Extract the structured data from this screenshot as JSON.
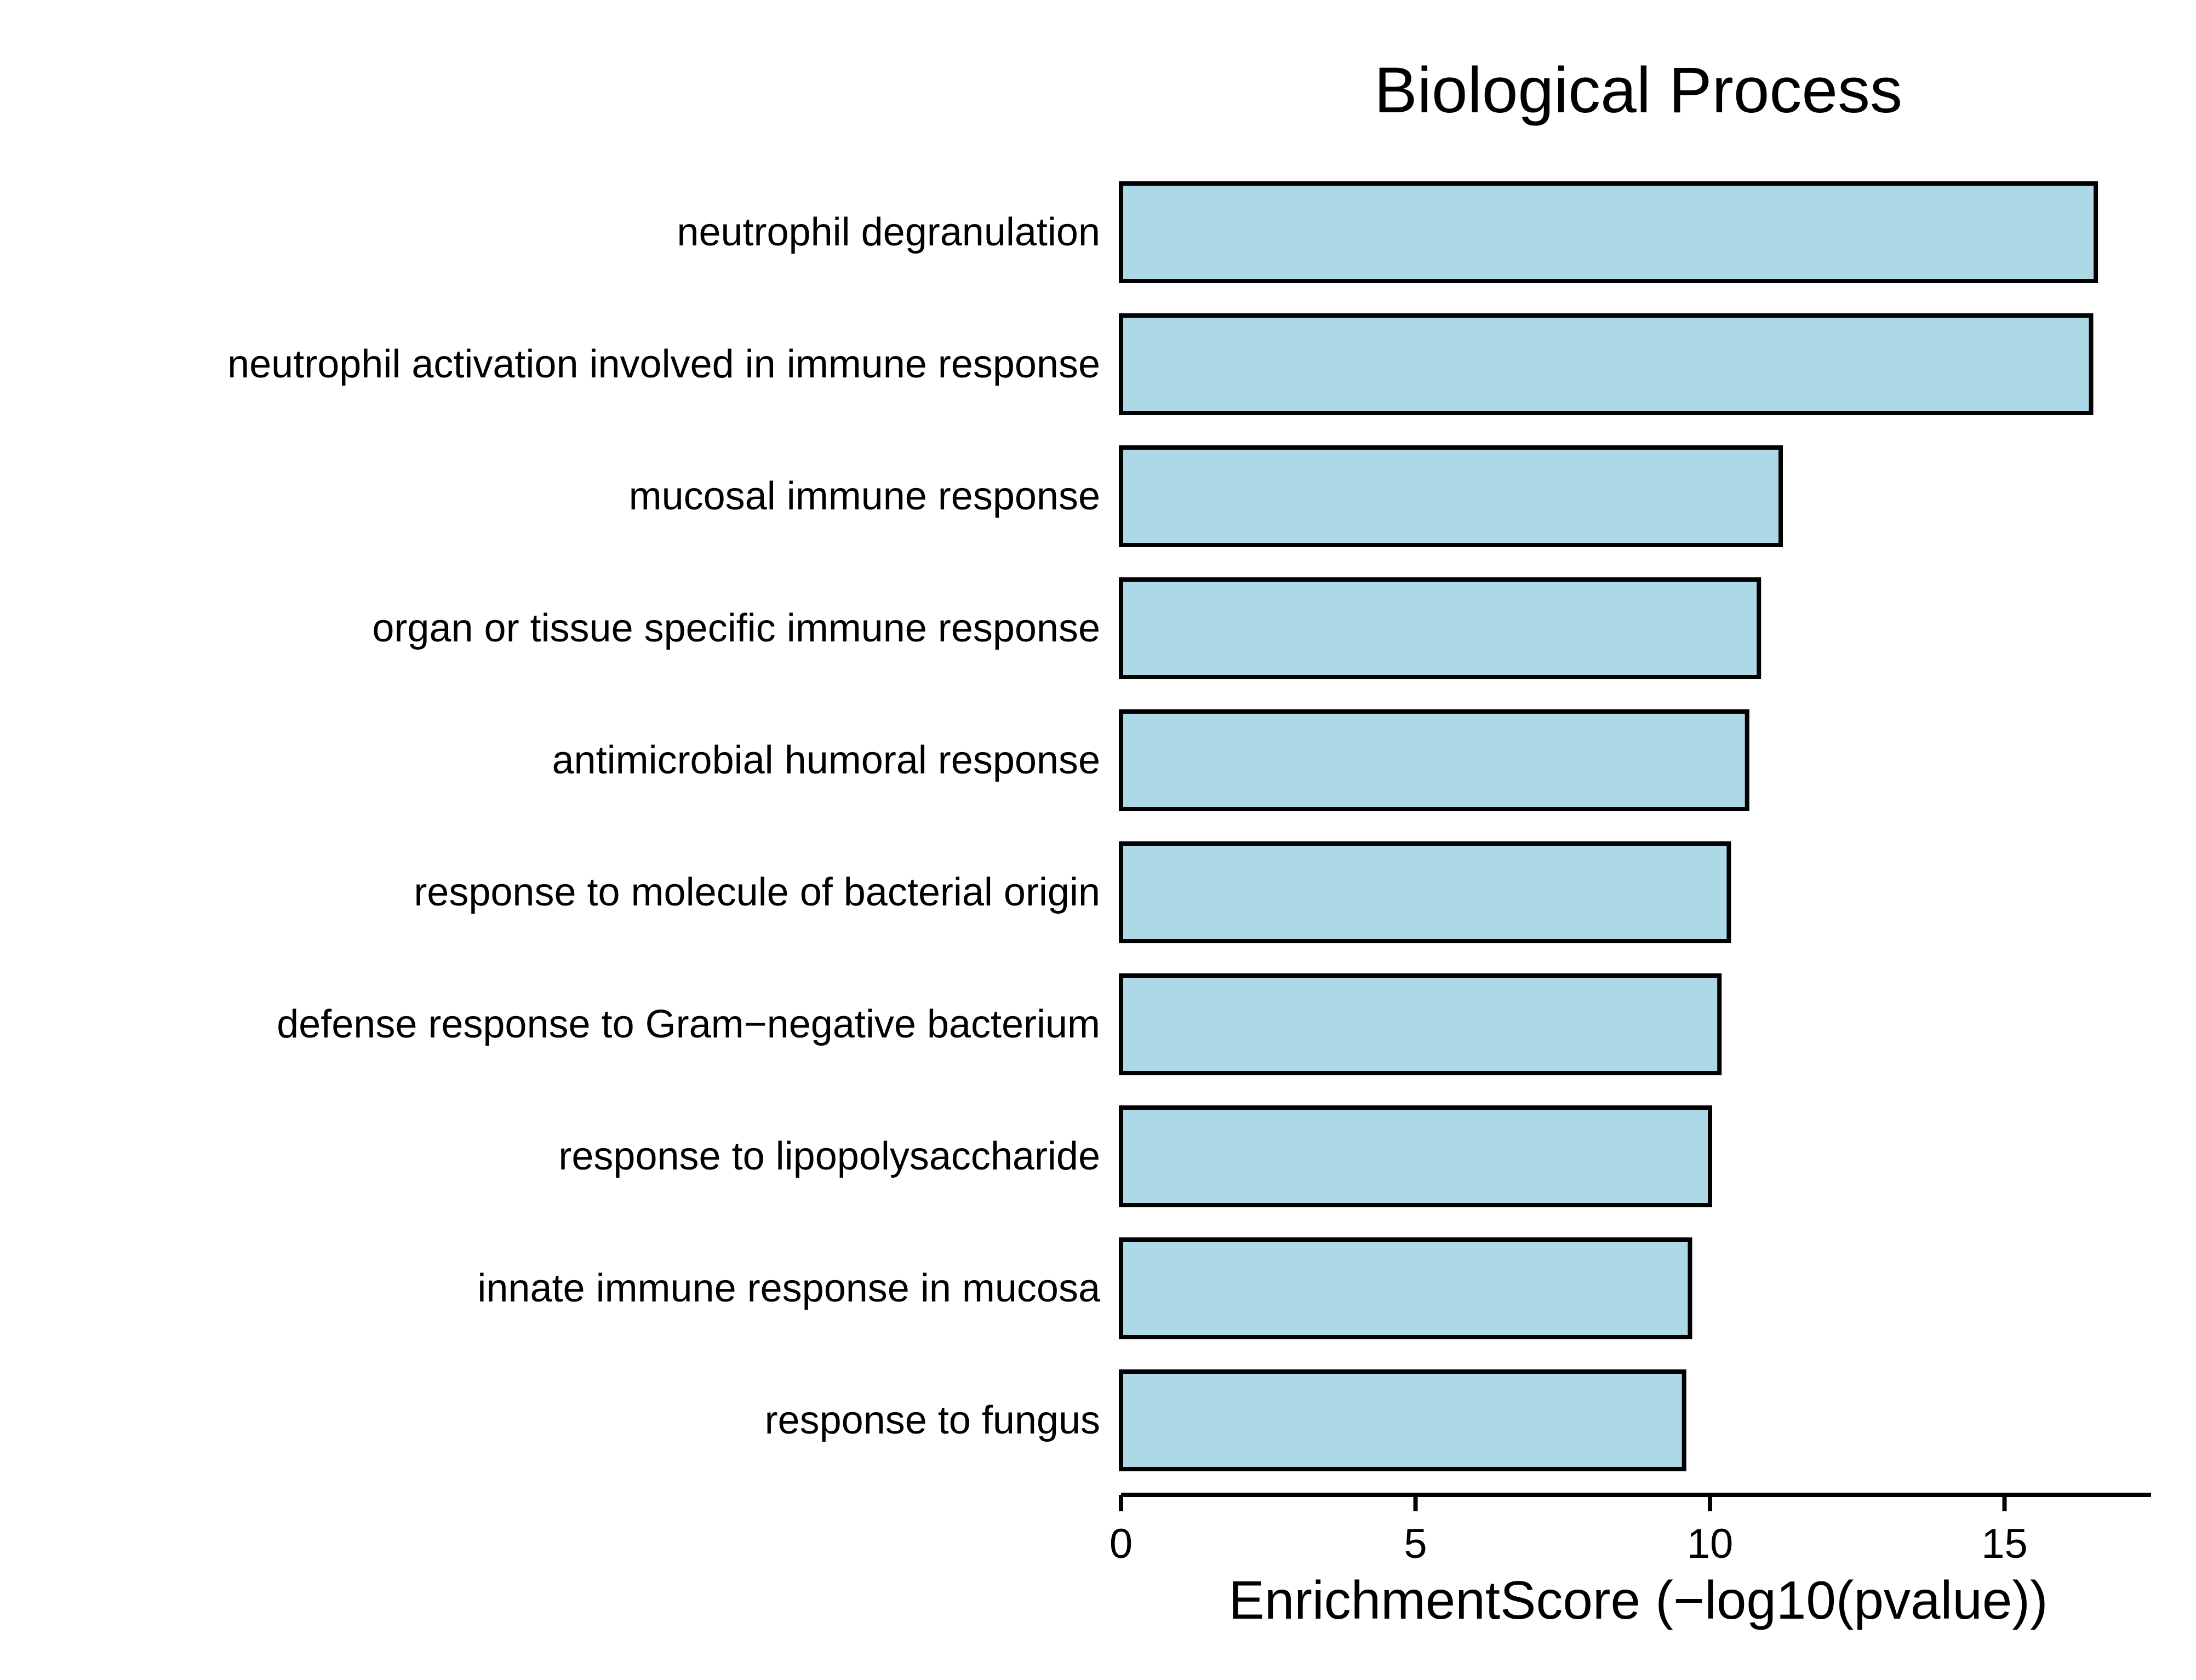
{
  "chart_data": {
    "type": "bar",
    "orientation": "horizontal",
    "title": "Biological Process",
    "xlabel": "EnrichmentScore (−log10(pvalue))",
    "ylabel": "",
    "categories": [
      "neutrophil degranulation",
      "neutrophil activation involved in immune response",
      "mucosal immune response",
      "organ or tissue specific immune response",
      "antimicrobial humoral response",
      "response to molecule of bacterial origin",
      "defense response to Gram−negative bacterium",
      "response to lipopolysaccharide",
      "innate immune response in mucosa",
      "response to fungus"
    ],
    "values": [
      16.55,
      16.47,
      11.2,
      10.83,
      10.63,
      10.32,
      10.16,
      10.0,
      9.66,
      9.56
    ],
    "xlim": [
      0,
      17.4
    ],
    "xticks": [
      0,
      5,
      10,
      15
    ],
    "xtick_labels": [
      "0",
      "5",
      "10",
      "15"
    ],
    "grid": false,
    "legend": "none",
    "colors": {
      "bar_fill": "#add8e6",
      "bar_stroke": "#000000",
      "axis": "#000000",
      "text": "#000000",
      "background": "#ffffff"
    }
  }
}
